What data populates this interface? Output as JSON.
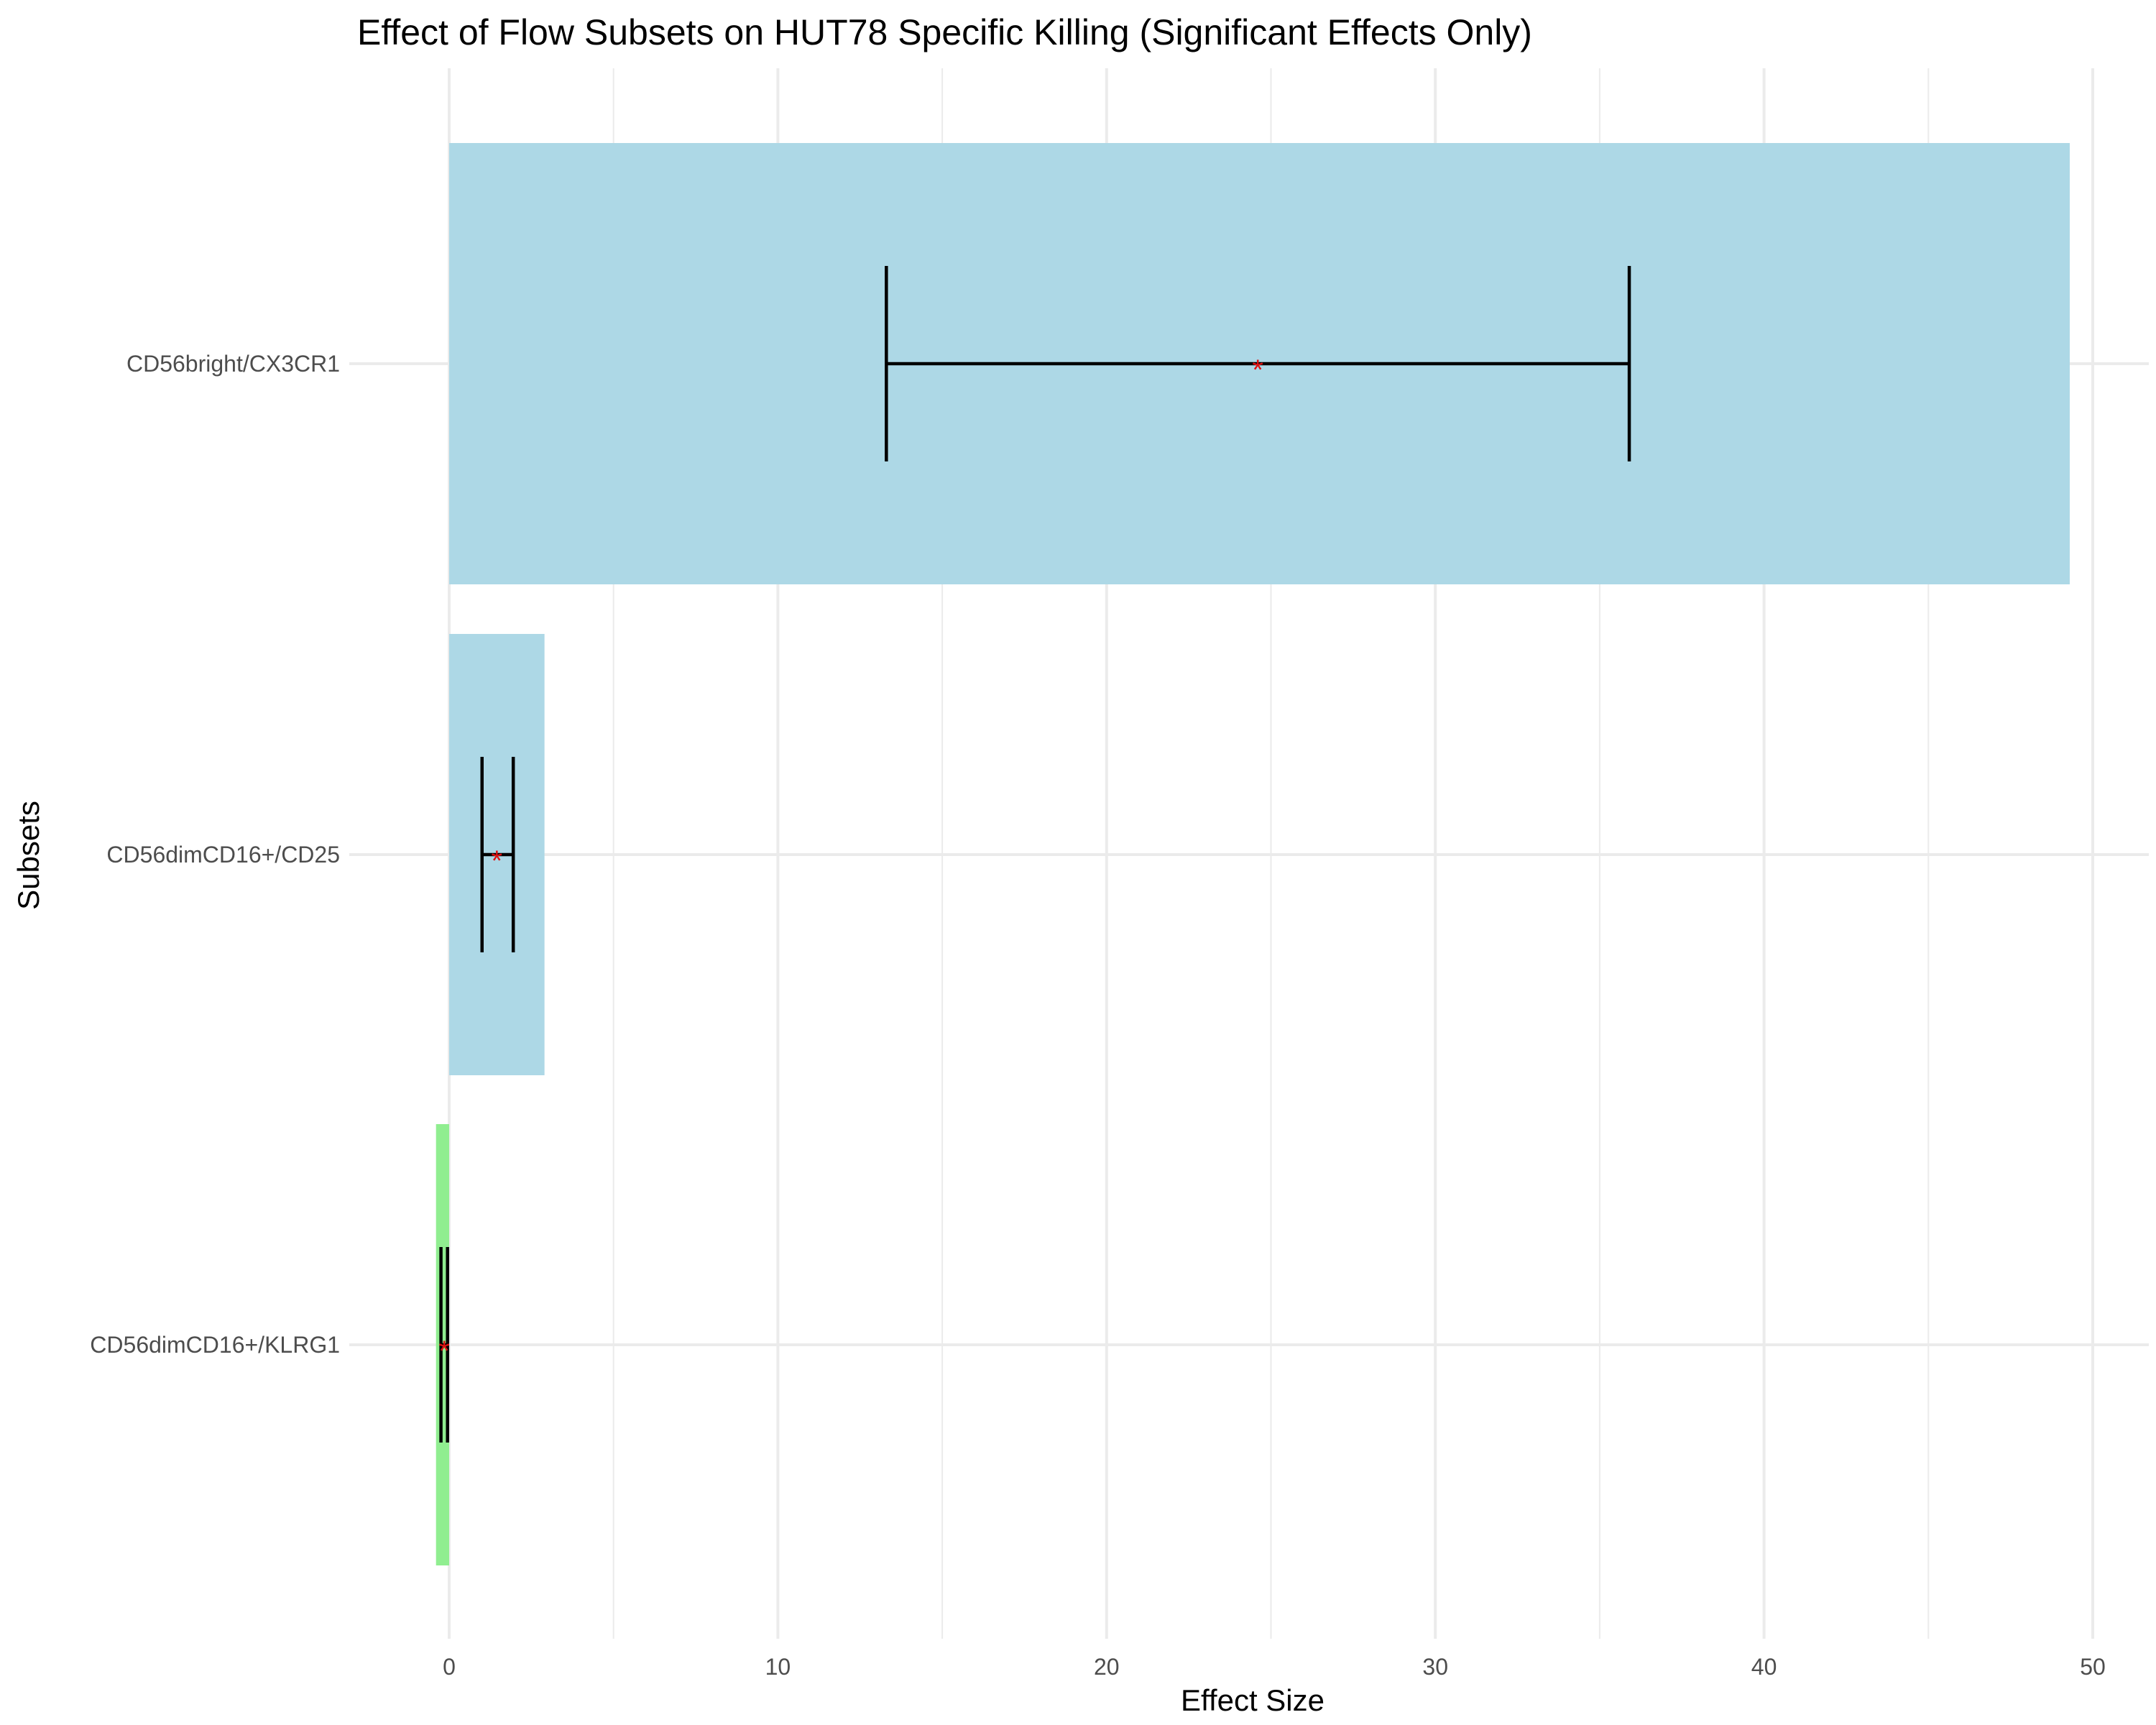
{
  "chart_data": {
    "type": "bar",
    "orientation": "horizontal",
    "title": "Effect of Flow Subsets on HUT78 Specific Killing (Significant Effects Only)",
    "xlabel": "Effect Size",
    "ylabel": "Subsets",
    "xlim": [
      -2.8,
      51.8
    ],
    "xticks": [
      0,
      10,
      20,
      30,
      40,
      50
    ],
    "xtick_labels": [
      "0",
      "10",
      "20",
      "30",
      "40",
      "50"
    ],
    "grid": true,
    "legend": "none",
    "categories": [
      "CD56bright/CX3CR1",
      "CD56dimCD16+/CD25",
      "CD56dimCD16+/KLRG1"
    ],
    "values": [
      49.3,
      2.9,
      -0.4
    ],
    "error_low": [
      13.3,
      1.0,
      -0.25
    ],
    "error_high": [
      35.9,
      1.95,
      -0.05
    ],
    "point_estimate": [
      24.6,
      1.45,
      -0.15
    ],
    "significance_marker": "*",
    "colors": {
      "positive": "#add8e6",
      "negative": "#90ee90",
      "error_bar": "#000000",
      "marker": "#dd1111",
      "grid": "#ebebeb"
    }
  }
}
